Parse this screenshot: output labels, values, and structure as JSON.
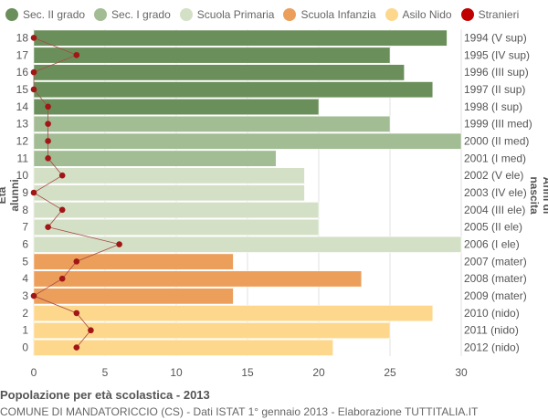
{
  "chart_data": {
    "type": "bar",
    "orientation": "horizontal",
    "title": "Popolazione per età scolastica - 2013",
    "subtitle": "COMUNE DI MANDATORICCIO (CS) - Dati ISTAT 1° gennaio 2013 - Elaborazione TUTTITALIA.IT",
    "ylabel": "Età alunni",
    "ylabel_right": "Anni di nascita",
    "xlim": [
      0,
      30
    ],
    "xticks": [
      0,
      5,
      10,
      15,
      20,
      25,
      30
    ],
    "grid": true,
    "legend_position": "top",
    "legend": [
      {
        "name": "Sec. II grado",
        "color": "#6b8f5a"
      },
      {
        "name": "Sec. I grado",
        "color": "#a2bc94"
      },
      {
        "name": "Scuola Primaria",
        "color": "#d4e0c6"
      },
      {
        "name": "Scuola Infanzia",
        "color": "#eb9f5b"
      },
      {
        "name": "Asilo Nido",
        "color": "#fdd88c"
      },
      {
        "name": "Stranieri",
        "color": "#c00000"
      }
    ],
    "bars": [
      {
        "age": "18",
        "birth": "1994 (V sup)",
        "value": 29,
        "group": 0,
        "stranieri": 0
      },
      {
        "age": "17",
        "birth": "1995 (IV sup)",
        "value": 25,
        "group": 0,
        "stranieri": 3
      },
      {
        "age": "16",
        "birth": "1996 (III sup)",
        "value": 26,
        "group": 0,
        "stranieri": 0
      },
      {
        "age": "15",
        "birth": "1997 (II sup)",
        "value": 28,
        "group": 0,
        "stranieri": 0
      },
      {
        "age": "14",
        "birth": "1998 (I sup)",
        "value": 20,
        "group": 0,
        "stranieri": 1
      },
      {
        "age": "13",
        "birth": "1999 (III med)",
        "value": 25,
        "group": 1,
        "stranieri": 1
      },
      {
        "age": "12",
        "birth": "2000 (II med)",
        "value": 30,
        "group": 1,
        "stranieri": 1
      },
      {
        "age": "11",
        "birth": "2001 (I med)",
        "value": 17,
        "group": 1,
        "stranieri": 1
      },
      {
        "age": "10",
        "birth": "2002 (V ele)",
        "value": 19,
        "group": 2,
        "stranieri": 2
      },
      {
        "age": "9",
        "birth": "2003 (IV ele)",
        "value": 19,
        "group": 2,
        "stranieri": 0
      },
      {
        "age": "8",
        "birth": "2004 (III ele)",
        "value": 20,
        "group": 2,
        "stranieri": 2
      },
      {
        "age": "7",
        "birth": "2005 (II ele)",
        "value": 20,
        "group": 2,
        "stranieri": 1
      },
      {
        "age": "6",
        "birth": "2006 (I ele)",
        "value": 30,
        "group": 2,
        "stranieri": 6
      },
      {
        "age": "5",
        "birth": "2007 (mater)",
        "value": 14,
        "group": 3,
        "stranieri": 3
      },
      {
        "age": "4",
        "birth": "2008 (mater)",
        "value": 23,
        "group": 3,
        "stranieri": 2
      },
      {
        "age": "3",
        "birth": "2009 (mater)",
        "value": 14,
        "group": 3,
        "stranieri": 0
      },
      {
        "age": "2",
        "birth": "2010 (nido)",
        "value": 28,
        "group": 4,
        "stranieri": 3
      },
      {
        "age": "1",
        "birth": "2011 (nido)",
        "value": 25,
        "group": 4,
        "stranieri": 4
      },
      {
        "age": "0",
        "birth": "2012 (nido)",
        "value": 21,
        "group": 4,
        "stranieri": 3
      }
    ]
  }
}
